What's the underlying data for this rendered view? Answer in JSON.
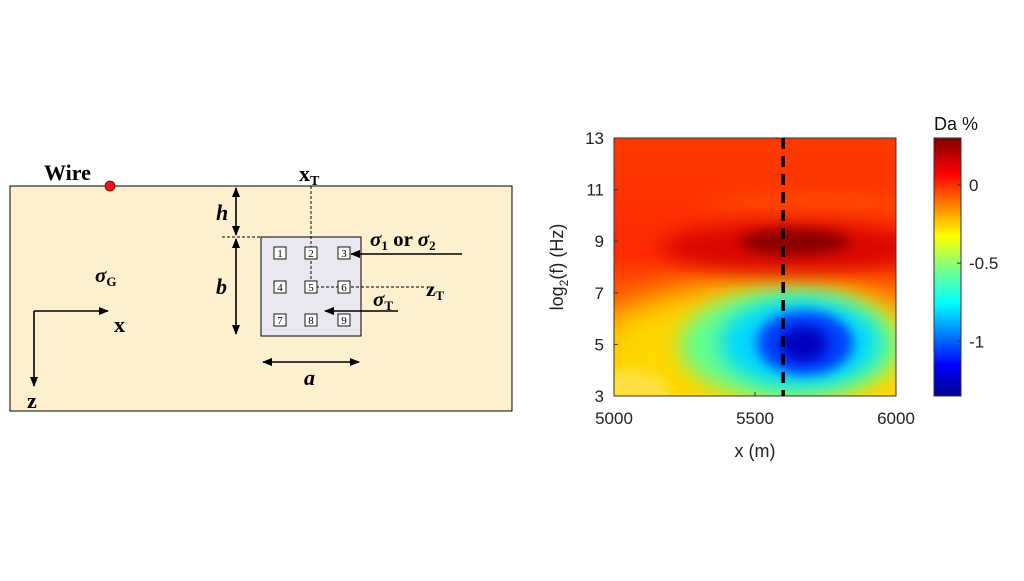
{
  "diagram": {
    "labels": {
      "wire": "Wire",
      "xT": "x",
      "xT_sub": "T",
      "h": "h",
      "b": "b",
      "a": "a",
      "sigma1": "σ",
      "sigma1_sub": "1",
      "or": " or ",
      "sigma2": "σ",
      "sigma2_sub": "2",
      "zT": "z",
      "zT_sub": "T",
      "sigmaT": "σ",
      "sigmaT_sub": "T",
      "sigmaG": "σ",
      "sigmaG_sub": "G",
      "axis_x": "x",
      "axis_z": "z"
    },
    "cells": [
      "1",
      "2",
      "3",
      "4",
      "5",
      "6",
      "7",
      "8",
      "9"
    ],
    "colors": {
      "ground_fill": "#fdf0cf",
      "target_fill": "#ebe7f0",
      "wire_dot": "#e4161b",
      "line": "#000000"
    }
  },
  "chart_data": {
    "type": "heatmap",
    "xlabel": "x (m)",
    "ylabel_base": "log",
    "ylabel_sub": "2",
    "ylabel_rest": "(f) (Hz)",
    "x_ticks": [
      "5000",
      "5500",
      "6000"
    ],
    "x_tick_values": [
      5000,
      5500,
      6000
    ],
    "y_ticks": [
      "3",
      "5",
      "7",
      "9",
      "11",
      "13"
    ],
    "y_tick_values": [
      3,
      5,
      7,
      9,
      11,
      13
    ],
    "xlim": [
      5000,
      6000
    ],
    "ylim": [
      3,
      13
    ],
    "marker_x": 5600,
    "marker_style": "dashed-vertical",
    "colorbar": {
      "title": "Da %",
      "ticks": [
        "0",
        "-0.5",
        "-1"
      ],
      "tick_values": [
        0,
        -0.5,
        -1
      ],
      "range": [
        -1.35,
        0.3
      ],
      "colormap": "jet"
    },
    "features": [
      {
        "x": 5590,
        "y": 8.9,
        "value": 0.3
      },
      {
        "x": 5640,
        "y": 5.0,
        "value": -1.35
      }
    ]
  }
}
